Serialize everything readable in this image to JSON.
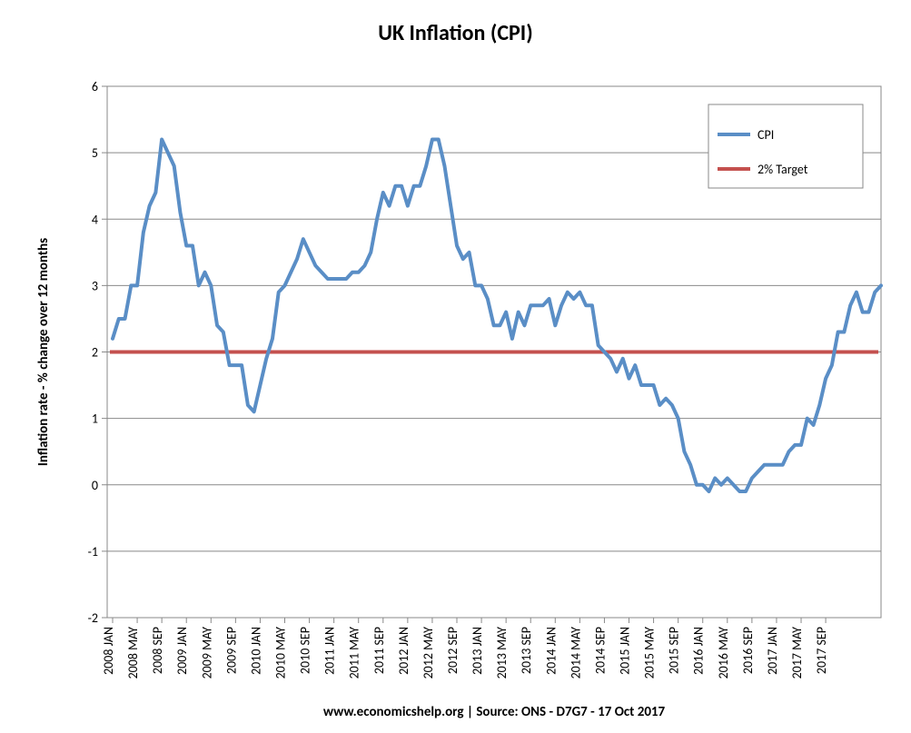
{
  "chart": {
    "type": "line",
    "title": "UK Inflation (CPI)",
    "title_fontsize": 24,
    "ylabel": "Inflation rate  - % change over 12 months",
    "ylabel_fontsize": 15,
    "caption": "www.economicshelp.org | Source: ONS - D7G7 - 17 Oct 2017",
    "caption_fontsize": 15,
    "background_color": "#ffffff",
    "plot_border_color": "#898989",
    "grid_color": "#898989",
    "ylim": [
      -2,
      6
    ],
    "ytick_step": 1,
    "tick_fontsize": 14,
    "legend": {
      "items": [
        {
          "label": "CPI",
          "color": "#5a8ec6",
          "width": 4
        },
        {
          "label": "2% Target",
          "color": "#c4504e",
          "width": 4
        }
      ],
      "fontsize": 14,
      "border_color": "#898989",
      "position": "top-right"
    },
    "target_line": {
      "value": 2.0,
      "color": "#c4504e",
      "width": 4
    },
    "series_cpi": {
      "color": "#5a8ec6",
      "width": 4,
      "x_labels": [
        "2008 JAN",
        "2008 MAY",
        "2008 SEP",
        "2009 JAN",
        "2009 MAY",
        "2009 SEP",
        "2010 JAN",
        "2010 MAY",
        "2010 SEP",
        "2011 JAN",
        "2011 MAY",
        "2011 SEP",
        "2012 JAN",
        "2012 MAY",
        "2012 SEP",
        "2013 JAN",
        "2013 MAY",
        "2013 SEP",
        "2014 JAN",
        "2014 MAY",
        "2014 SEP",
        "2015 JAN",
        "2015 MAY",
        "2015 SEP",
        "2016 JAN",
        "2016 MAY",
        "2016 SEP",
        "2017 JAN",
        "2017 MAY",
        "2017 SEP"
      ],
      "values": [
        2.2,
        2.5,
        2.5,
        3.0,
        3.0,
        3.8,
        4.2,
        4.4,
        5.2,
        5.0,
        4.8,
        4.1,
        3.6,
        3.6,
        3.0,
        3.2,
        3.0,
        2.4,
        2.3,
        1.8,
        1.8,
        1.8,
        1.2,
        1.1,
        1.5,
        1.9,
        2.2,
        2.9,
        3.0,
        3.2,
        3.4,
        3.7,
        3.5,
        3.3,
        3.2,
        3.1,
        3.1,
        3.1,
        3.1,
        3.2,
        3.2,
        3.3,
        3.5,
        4.0,
        4.4,
        4.2,
        4.5,
        4.5,
        4.2,
        4.5,
        4.5,
        4.8,
        5.2,
        5.2,
        4.8,
        4.2,
        3.6,
        3.4,
        3.5,
        3.0,
        3.0,
        2.8,
        2.4,
        2.4,
        2.6,
        2.2,
        2.6,
        2.4,
        2.7,
        2.7,
        2.7,
        2.8,
        2.4,
        2.7,
        2.9,
        2.8,
        2.9,
        2.7,
        2.7,
        2.1,
        2.0,
        1.9,
        1.7,
        1.9,
        1.6,
        1.8,
        1.5,
        1.5,
        1.5,
        1.2,
        1.3,
        1.2,
        1.0,
        0.5,
        0.3,
        0.0,
        0.0,
        -0.1,
        0.1,
        0.0,
        0.1,
        0.0,
        -0.1,
        -0.1,
        0.1,
        0.2,
        0.3,
        0.3,
        0.3,
        0.3,
        0.5,
        0.6,
        0.6,
        1.0,
        0.9,
        1.2,
        1.6,
        1.8,
        2.3,
        2.3,
        2.7,
        2.9,
        2.6,
        2.6,
        2.9,
        3.0
      ]
    }
  }
}
